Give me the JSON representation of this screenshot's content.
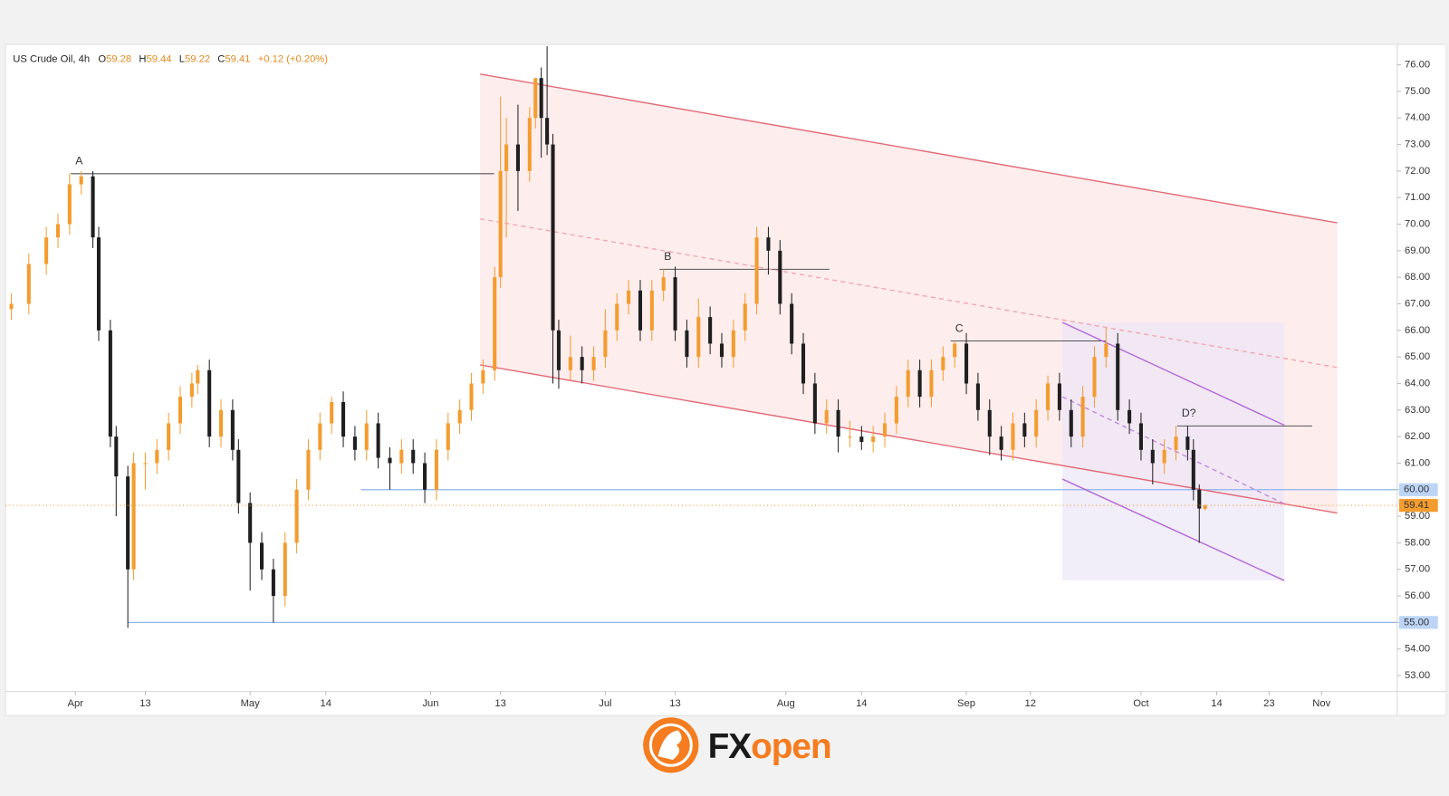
{
  "chart_data": {
    "type": "candlestick",
    "title": "US Crude Oil, 4h",
    "ohlc_labels": [
      "O",
      "H",
      "L",
      "C"
    ],
    "change": "+0.12 (+0.20%)",
    "x": [
      80,
      83,
      86,
      88,
      90,
      92,
      94,
      95,
      97,
      98,
      100,
      101,
      103,
      105,
      107,
      109,
      111,
      112,
      114,
      116,
      118,
      119,
      121,
      123,
      125,
      127,
      129,
      131,
      133,
      135,
      137,
      139,
      141,
      143,
      145,
      147,
      149,
      151,
      153,
      155,
      157,
      159,
      161,
      163,
      164,
      165,
      167,
      169,
      170,
      171,
      172,
      173,
      174,
      176,
      178,
      180,
      182,
      184,
      186,
      188,
      190,
      192,
      194,
      196,
      198,
      200,
      202,
      204,
      206,
      208,
      210,
      212,
      214,
      216,
      218,
      220,
      222,
      224,
      226,
      228,
      230,
      232,
      234,
      236,
      238,
      240,
      242,
      244,
      246,
      248,
      250,
      252,
      254,
      256,
      258,
      260,
      262,
      264,
      266,
      268,
      270,
      272,
      274,
      276,
      278,
      280,
      282,
      283,
      284,
      285
    ],
    "open": [
      66.8,
      67.0,
      68.5,
      69.5,
      70.0,
      71.5,
      71.8,
      69.5,
      66.0,
      62.0,
      60.5,
      57.0,
      61.0,
      61.0,
      61.5,
      62.5,
      63.5,
      64.0,
      64.5,
      62.0,
      63.0,
      61.5,
      59.5,
      58.0,
      57.0,
      56.0,
      58.0,
      60.0,
      61.5,
      62.5,
      63.3,
      62.0,
      61.5,
      62.5,
      61.2,
      61.0,
      61.5,
      61.0,
      60.0,
      61.5,
      62.5,
      63.0,
      64.0,
      64.5,
      68.0,
      72.0,
      73.0,
      72.0,
      74.0,
      75.5,
      74.0,
      73.0,
      66.0,
      64.5,
      65.0,
      64.5,
      65.0,
      66.0,
      67.0,
      67.5,
      66.0,
      67.5,
      68.0,
      66.0,
      65.0,
      66.5,
      65.5,
      65.0,
      66.0,
      67.0,
      69.5,
      69.0,
      67.0,
      65.5,
      64.0,
      62.5,
      63.0,
      62.0,
      62.0,
      61.8,
      62.0,
      62.5,
      63.5,
      64.5,
      63.5,
      64.5,
      65.0,
      65.5,
      64.0,
      63.0,
      62.0,
      61.5,
      62.5,
      62.0,
      63.0,
      64.0,
      63.0,
      62.0,
      63.5,
      65.0,
      65.5,
      63.0,
      62.5,
      61.5,
      61.0,
      61.5,
      62.0,
      61.5,
      60.0,
      59.28
    ],
    "high": [
      67.4,
      68.9,
      69.9,
      70.4,
      71.9,
      72.0,
      72.0,
      69.9,
      66.4,
      62.4,
      60.9,
      61.4,
      61.4,
      61.9,
      62.9,
      63.9,
      64.4,
      64.7,
      64.9,
      63.4,
      63.4,
      61.9,
      59.9,
      58.4,
      57.4,
      58.4,
      60.4,
      61.9,
      62.9,
      63.5,
      63.7,
      62.4,
      63.0,
      62.9,
      61.6,
      61.9,
      61.9,
      61.4,
      61.9,
      62.9,
      63.4,
      64.4,
      64.9,
      68.4,
      74.8,
      74.0,
      74.5,
      74.4,
      75.5,
      75.9,
      76.7,
      73.4,
      66.4,
      65.8,
      65.4,
      65.4,
      66.8,
      67.4,
      67.9,
      67.9,
      67.9,
      68.3,
      68.4,
      66.4,
      67.2,
      66.9,
      65.9,
      66.4,
      67.4,
      69.9,
      69.9,
      69.4,
      67.4,
      65.9,
      64.4,
      63.4,
      63.4,
      62.6,
      62.4,
      62.4,
      62.9,
      63.9,
      64.9,
      64.9,
      64.9,
      65.4,
      65.6,
      65.9,
      64.4,
      63.4,
      62.4,
      62.9,
      62.9,
      63.4,
      64.3,
      64.4,
      63.4,
      63.9,
      65.4,
      66.1,
      65.9,
      63.4,
      62.9,
      61.9,
      61.9,
      62.4,
      62.4,
      61.9,
      60.2,
      59.44
    ],
    "low": [
      66.4,
      66.6,
      68.1,
      69.1,
      69.6,
      71.1,
      69.1,
      65.6,
      61.6,
      59.0,
      54.8,
      56.6,
      60.0,
      60.6,
      61.1,
      62.1,
      63.1,
      63.6,
      61.6,
      61.6,
      61.1,
      59.1,
      56.2,
      56.6,
      55.0,
      55.6,
      57.6,
      59.6,
      61.1,
      62.1,
      61.6,
      61.1,
      61.1,
      60.8,
      60.0,
      60.6,
      60.6,
      59.5,
      59.6,
      61.1,
      62.1,
      62.6,
      63.6,
      64.1,
      67.6,
      69.5,
      70.5,
      71.6,
      73.6,
      72.5,
      72.6,
      64.0,
      63.8,
      64.1,
      64.0,
      64.1,
      64.6,
      65.6,
      66.6,
      65.6,
      65.6,
      67.1,
      65.6,
      64.6,
      64.6,
      65.1,
      64.6,
      64.6,
      65.6,
      66.6,
      68.1,
      66.6,
      65.1,
      63.6,
      62.1,
      62.1,
      61.4,
      61.6,
      61.5,
      61.4,
      61.6,
      62.1,
      63.1,
      63.1,
      63.1,
      64.1,
      64.6,
      63.6,
      62.6,
      61.3,
      61.1,
      61.1,
      61.6,
      61.6,
      62.6,
      62.6,
      61.6,
      61.6,
      63.1,
      64.6,
      62.6,
      62.1,
      61.1,
      60.2,
      60.6,
      61.1,
      61.1,
      59.6,
      58.0,
      59.22
    ],
    "close": [
      67.0,
      68.5,
      69.5,
      70.0,
      71.5,
      71.8,
      69.5,
      66.0,
      62.0,
      60.5,
      57.0,
      61.0,
      61.0,
      61.5,
      62.5,
      63.5,
      64.0,
      64.5,
      62.0,
      63.0,
      61.5,
      59.5,
      58.0,
      57.0,
      56.0,
      58.0,
      60.0,
      61.5,
      62.5,
      63.3,
      62.0,
      61.5,
      62.5,
      61.2,
      61.0,
      61.5,
      61.0,
      60.0,
      61.5,
      62.5,
      63.0,
      64.0,
      64.5,
      68.0,
      72.0,
      73.0,
      72.0,
      74.0,
      75.5,
      74.0,
      73.0,
      66.0,
      64.5,
      65.0,
      64.5,
      65.0,
      66.0,
      67.0,
      67.5,
      66.0,
      67.5,
      68.0,
      66.0,
      65.0,
      66.5,
      65.5,
      65.0,
      66.0,
      67.0,
      69.5,
      69.0,
      67.0,
      65.5,
      64.0,
      62.5,
      63.0,
      62.0,
      62.0,
      61.8,
      62.0,
      62.5,
      63.5,
      64.5,
      63.5,
      64.5,
      65.0,
      65.5,
      64.0,
      63.0,
      62.0,
      61.5,
      62.5,
      62.0,
      63.0,
      64.0,
      63.0,
      62.0,
      63.5,
      65.0,
      65.5,
      63.0,
      62.5,
      61.5,
      61.0,
      61.5,
      62.0,
      61.5,
      60.0,
      59.29,
      59.41
    ],
    "up_color": "#f39c2f",
    "down_color": "#1f1f1f",
    "price_line_color": "#f39c2f",
    "xlim": [
      79,
      318
    ],
    "xticks": [
      {
        "value": 91,
        "label": "Apr"
      },
      {
        "value": 103,
        "label": "13"
      },
      {
        "value": 121,
        "label": "May"
      },
      {
        "value": 134,
        "label": "14"
      },
      {
        "value": 152,
        "label": "Jun"
      },
      {
        "value": 164,
        "label": "13"
      },
      {
        "value": 182,
        "label": "Jul"
      },
      {
        "value": 194,
        "label": "13"
      },
      {
        "value": 213,
        "label": "Aug"
      },
      {
        "value": 226,
        "label": "14"
      },
      {
        "value": 244,
        "label": "Sep"
      },
      {
        "value": 255,
        "label": "12"
      },
      {
        "value": 274,
        "label": "Oct"
      },
      {
        "value": 287,
        "label": "14"
      },
      {
        "value": 296,
        "label": "23"
      },
      {
        "value": 305,
        "label": "Nov"
      }
    ],
    "ylim": [
      52.4,
      76.7
    ],
    "yticks": [
      {
        "value": 53,
        "label": "53.00"
      },
      {
        "value": 54,
        "label": "54.00"
      },
      {
        "value": 55,
        "label": "55.00"
      },
      {
        "value": 56,
        "label": "56.00"
      },
      {
        "value": 57,
        "label": "57.00"
      },
      {
        "value": 58,
        "label": "58.00"
      },
      {
        "value": 59,
        "label": "59.00"
      },
      {
        "value": 60,
        "label": "60.00"
      },
      {
        "value": 61,
        "label": "61.00"
      },
      {
        "value": 62,
        "label": "62.00"
      },
      {
        "value": 63,
        "label": "63.00"
      },
      {
        "value": 64,
        "label": "64.00"
      },
      {
        "value": 65,
        "label": "65.00"
      },
      {
        "value": 66,
        "label": "66.00"
      },
      {
        "value": 67,
        "label": "67.00"
      },
      {
        "value": 68,
        "label": "68.00"
      },
      {
        "value": 69,
        "label": "69.00"
      },
      {
        "value": 70,
        "label": "70.00"
      },
      {
        "value": 71,
        "label": "71.00"
      },
      {
        "value": 72,
        "label": "72.00"
      },
      {
        "value": 73,
        "label": "73.00"
      },
      {
        "value": 74,
        "label": "74.00"
      },
      {
        "value": 75,
        "label": "75.00"
      },
      {
        "value": 76,
        "label": "76.00"
      }
    ],
    "grid": false,
    "zones": [
      {
        "x": [
          160.5,
          307.7,
          307.7,
          160.5
        ],
        "y": [
          75.65,
          70.05,
          59.12,
          64.7
        ],
        "color": "#fde6e6"
      },
      {
        "x": [
          260.5,
          298.6,
          298.6,
          260.5
        ],
        "y": [
          66.3,
          66.3,
          56.58,
          56.58
        ],
        "color": "#ebe6f6"
      }
    ],
    "trend_lines": [
      {
        "x": [
          160.5,
          307.7
        ],
        "y": [
          75.65,
          70.05
        ],
        "color": "#e36b78",
        "dashed": false
      },
      {
        "x": [
          160.5,
          307.7
        ],
        "y": [
          64.7,
          59.12
        ],
        "color": "#e36b78",
        "dashed": false
      },
      {
        "x": [
          160.5,
          307.7
        ],
        "y": [
          70.2,
          64.6
        ],
        "color": "#f2a9b0",
        "dashed": true
      },
      {
        "x": [
          260.5,
          298.6
        ],
        "y": [
          66.3,
          62.43
        ],
        "color": "#b36ad8",
        "dashed": false
      },
      {
        "x": [
          260.5,
          298.6
        ],
        "y": [
          60.4,
          56.58
        ],
        "color": "#b36ad8",
        "dashed": false
      },
      {
        "x": [
          260.5,
          298.6
        ],
        "y": [
          63.5,
          59.47
        ],
        "color": "#c58ae0",
        "dashed": true
      }
    ],
    "levels": [
      {
        "value": 60,
        "label": "60.00",
        "x_start": 140,
        "color": "#8fb5ee"
      },
      {
        "value": 55,
        "label": "55.00",
        "x_start": 100,
        "color": "#8fb5ee"
      }
    ],
    "annotations": [
      {
        "text": "A",
        "value": 71.9,
        "x": [
          90.2,
          162.9
        ]
      },
      {
        "text": "B",
        "value": 68.3,
        "x": [
          191.3,
          220.5
        ]
      },
      {
        "text": "C",
        "value": 65.6,
        "x": [
          241.3,
          268
        ]
      },
      {
        "text": "D?",
        "value": 62.4,
        "x": [
          280.2,
          303.4
        ]
      }
    ]
  },
  "brand": {
    "prefix": "FX",
    "suffix": "open"
  }
}
